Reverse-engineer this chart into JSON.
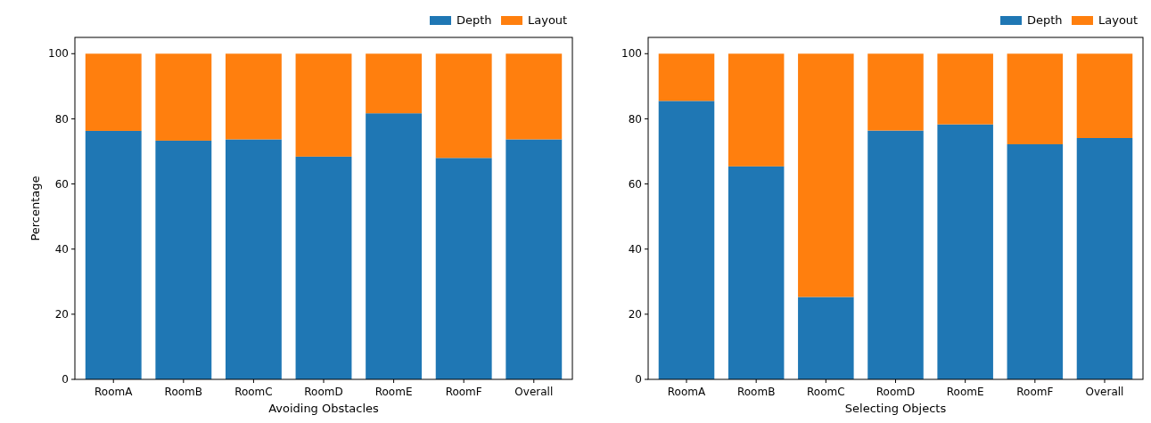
{
  "chart_data": [
    {
      "type": "bar",
      "stacked": true,
      "xlabel": "Avoiding Obstacles",
      "ylabel": "Percentage",
      "categories": [
        "RoomA",
        "RoomB",
        "RoomC",
        "RoomD",
        "RoomE",
        "RoomF",
        "Overall"
      ],
      "ylim": [
        0,
        105
      ],
      "yticks": [
        0,
        20,
        40,
        60,
        80,
        100
      ],
      "legend": "top right",
      "series": [
        {
          "name": "Depth",
          "color": "#1f77b4",
          "values": [
            76.3,
            73.3,
            73.7,
            68.4,
            81.7,
            68.0,
            73.7
          ]
        },
        {
          "name": "Layout",
          "color": "#ff7f0e",
          "values": [
            23.7,
            26.7,
            26.3,
            31.6,
            18.3,
            32.0,
            26.3
          ]
        }
      ]
    },
    {
      "type": "bar",
      "stacked": true,
      "xlabel": "Selecting Objects",
      "categories": [
        "RoomA",
        "RoomB",
        "RoomC",
        "RoomD",
        "RoomE",
        "RoomF",
        "Overall"
      ],
      "ylim": [
        0,
        105
      ],
      "yticks": [
        0,
        20,
        40,
        60,
        80,
        100
      ],
      "legend": "top right",
      "series": [
        {
          "name": "Depth",
          "color": "#1f77b4",
          "values": [
            85.5,
            65.4,
            25.3,
            76.4,
            78.3,
            72.2,
            74.1
          ]
        },
        {
          "name": "Layout",
          "color": "#ff7f0e",
          "values": [
            14.5,
            34.6,
            74.7,
            23.6,
            21.7,
            27.8,
            25.9
          ]
        }
      ]
    }
  ]
}
